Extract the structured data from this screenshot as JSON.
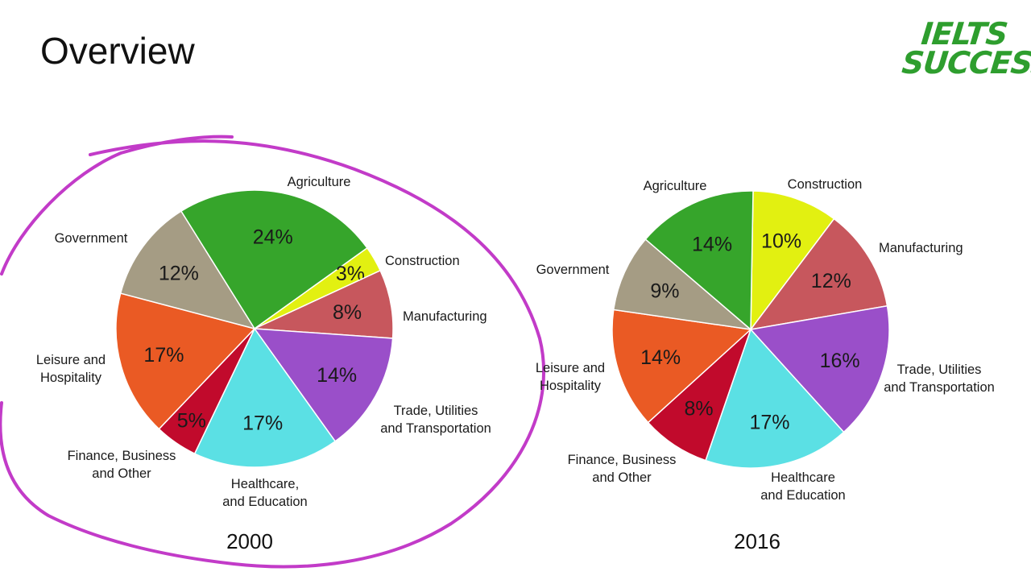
{
  "slide": {
    "title": "Overview"
  },
  "logo": {
    "line1": "IELTS",
    "line2": "SUCCESS"
  },
  "colors": {
    "agriculture": "#36a52b",
    "construction": "#e2f011",
    "manufacturing": "#c7575d",
    "trade": "#9a4fc9",
    "healthcare": "#5be0e4",
    "finance": "#c10a2c",
    "leisure": "#ea5a24",
    "government": "#a59c84",
    "annotation": "#c23bc8"
  },
  "chart_data": [
    {
      "type": "pie",
      "title": "2000",
      "annotation": "circled",
      "slices": [
        {
          "label": "Agriculture",
          "value": 24,
          "value_label": "24%",
          "color_key": "agriculture"
        },
        {
          "label": "Construction",
          "value": 3,
          "value_label": "3%",
          "color_key": "construction"
        },
        {
          "label": "Manufacturing",
          "value": 8,
          "value_label": "8%",
          "color_key": "manufacturing"
        },
        {
          "label": "Trade, Utilities and Transportation",
          "value": 14,
          "value_label": "14%",
          "color_key": "trade"
        },
        {
          "label": "Healthcare, and Education",
          "value": 17,
          "value_label": "17%",
          "color_key": "healthcare"
        },
        {
          "label": "Finance, Business and Other",
          "value": 5,
          "value_label": "5%",
          "color_key": "finance"
        },
        {
          "label": "Leisure and Hospitality",
          "value": 17,
          "value_label": "17%",
          "color_key": "leisure"
        },
        {
          "label": "Government",
          "value": 12,
          "value_label": "12%",
          "color_key": "government"
        }
      ]
    },
    {
      "type": "pie",
      "title": "2016",
      "slices": [
        {
          "label": "Construction",
          "value": 10,
          "value_label": "10%",
          "color_key": "construction"
        },
        {
          "label": "Manufacturing",
          "value": 12,
          "value_label": "12%",
          "color_key": "manufacturing"
        },
        {
          "label": "Trade, Utilities and Transportation",
          "value": 16,
          "value_label": "16%",
          "color_key": "trade"
        },
        {
          "label": "Healthcare and Education",
          "value": 17,
          "value_label": "17%",
          "color_key": "healthcare"
        },
        {
          "label": "Finance, Business and Other",
          "value": 8,
          "value_label": "8%",
          "color_key": "finance"
        },
        {
          "label": "Leisure and Hospitality",
          "value": 14,
          "value_label": "14%",
          "color_key": "leisure"
        },
        {
          "label": "Government",
          "value": 9,
          "value_label": "9%",
          "color_key": "government"
        },
        {
          "label": "Agriculture",
          "value": 14,
          "value_label": "14%",
          "color_key": "agriculture"
        }
      ]
    }
  ]
}
